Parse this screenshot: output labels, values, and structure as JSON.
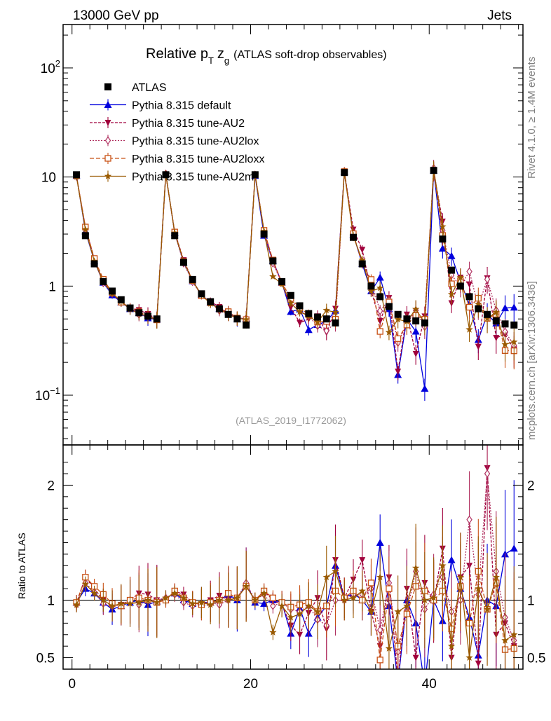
{
  "header": {
    "energy_label": "13000 GeV pp",
    "process_label": "Jets"
  },
  "side_labels": {
    "rivet": "Rivet 4.1.0, ≥ 1.4M events",
    "mcplots": "mcplots.cern.ch [arXiv:1306.3436]"
  },
  "chart_data": {
    "type": "line",
    "title": "Relative p_T z_g (ATLAS soft-drop observables)",
    "title_parts": {
      "main": "Relative p",
      "sub_t": "T",
      "z": "z",
      "sub_g": "g",
      "rest": "(ATLAS soft-drop observables)"
    },
    "analysis_id": "(ATLAS_2019_I1772062)",
    "xlabel": "",
    "ylabel_ratio": "Ratio to ATLAS",
    "xlim": [
      -1,
      50.5
    ],
    "ylim_main": [
      0.035,
      250
    ],
    "ylim_ratio": [
      0.4,
      2.35
    ],
    "yscale_main": "log",
    "x_ticks": [
      0,
      20,
      40
    ],
    "x_tick_labels": [
      "0",
      "20",
      "40"
    ],
    "y_ticks_main": [
      {
        "value": 100,
        "base": "10",
        "exp": "2"
      },
      {
        "value": 10,
        "base": "10",
        "exp": ""
      },
      {
        "value": 1,
        "base": "1",
        "exp": ""
      },
      {
        "value": 0.1,
        "base": "10",
        "exp": "−1"
      }
    ],
    "y_ticks_ratio": [
      {
        "value": 2,
        "label": "2"
      },
      {
        "value": 1,
        "label": "1"
      },
      {
        "value": 0.5,
        "label": "0.5"
      }
    ],
    "x": [
      0.5,
      1.5,
      2.5,
      3.5,
      4.5,
      5.5,
      6.5,
      7.5,
      8.5,
      9.5,
      10.5,
      11.5,
      12.5,
      13.5,
      14.5,
      15.5,
      16.5,
      17.5,
      18.5,
      19.5,
      20.5,
      21.5,
      22.5,
      23.5,
      24.5,
      25.5,
      26.5,
      27.5,
      28.5,
      29.5,
      30.5,
      31.5,
      32.5,
      33.5,
      34.5,
      35.5,
      36.5,
      37.5,
      38.5,
      39.5,
      40.5,
      41.5,
      42.5,
      43.5,
      44.5,
      45.5,
      46.5,
      47.5,
      48.5,
      49.5
    ],
    "series": [
      {
        "name": "ATLAS",
        "is_data": true,
        "color": "#000000",
        "marker": "square",
        "dash": "",
        "values": [
          10.5,
          2.9,
          1.6,
          1.1,
          0.9,
          0.75,
          0.63,
          0.57,
          0.53,
          0.5,
          10.5,
          2.9,
          1.65,
          1.15,
          0.85,
          0.72,
          0.62,
          0.55,
          0.5,
          0.44,
          10.5,
          3.0,
          1.7,
          1.1,
          0.82,
          0.66,
          0.56,
          0.52,
          0.5,
          0.46,
          11.0,
          2.8,
          1.6,
          1.0,
          0.8,
          0.65,
          0.55,
          0.5,
          0.48,
          0.46,
          11.5,
          2.7,
          1.4,
          1.0,
          0.8,
          0.62,
          0.55,
          0.48,
          0.45,
          0.44
        ]
      },
      {
        "name": "Pythia 8.315 default",
        "color": "#0000dd",
        "marker": "triangle-up",
        "dash": "",
        "ratio": [
          0.98,
          1.1,
          1.06,
          0.98,
          0.92,
          0.95,
          0.98,
          1.0,
          0.96,
          0.99,
          1.02,
          1.06,
          1.0,
          0.97,
          0.98,
          0.98,
          1.0,
          1.05,
          1.0,
          1.15,
          0.98,
          0.97,
          1.0,
          0.98,
          0.71,
          0.93,
          0.71,
          0.85,
          0.95,
          1.3,
          1.02,
          1.06,
          1.0,
          0.9,
          1.5,
          0.95,
          0.28,
          1.0,
          0.8,
          0.25,
          1.0,
          0.82,
          1.35,
          1.1,
          0.85,
          0.52,
          1.0,
          0.95,
          1.4,
          1.45
        ]
      },
      {
        "name": "Pythia 8.315 tune-AU2",
        "color": "#a0003c",
        "marker": "triangle-down",
        "dash": "4,2",
        "ratio": [
          0.97,
          1.2,
          1.1,
          1.0,
          0.95,
          0.96,
          1.0,
          1.06,
          1.05,
          1.0,
          1.0,
          1.08,
          1.05,
          0.98,
          0.96,
          1.0,
          1.04,
          1.0,
          1.02,
          1.12,
          1.0,
          1.08,
          1.0,
          0.96,
          0.78,
          0.7,
          0.89,
          1.02,
          0.75,
          1.35,
          1.02,
          1.18,
          1.35,
          0.9,
          0.6,
          1.2,
          0.3,
          1.1,
          0.5,
          1.15,
          0.98,
          1.45,
          0.5,
          1.2,
          1.3,
          0.45,
          2.15,
          0.7,
          0.8,
          0.6
        ]
      },
      {
        "name": "Pythia 8.315 tune-AU2lox",
        "color": "#b03060",
        "marker": "diamond",
        "dash": "2,2",
        "ratio": [
          0.96,
          1.15,
          1.07,
          0.97,
          0.95,
          0.96,
          1.0,
          0.96,
          1.0,
          1.0,
          1.02,
          1.05,
          0.98,
          0.95,
          0.97,
          0.98,
          0.96,
          1.0,
          1.02,
          1.15,
          1.0,
          1.05,
          0.95,
          0.98,
          0.92,
          0.9,
          0.95,
          0.83,
          0.78,
          1.0,
          1.0,
          1.05,
          1.05,
          1.1,
          0.74,
          1.15,
          0.55,
          0.9,
          1.25,
          0.92,
          1.05,
          1.2,
          0.9,
          1.0,
          1.7,
          1.05,
          2.1,
          1.25,
          0.85,
          0.65
        ]
      },
      {
        "name": "Pythia 8.315 tune-AU2loxx",
        "color": "#c85014",
        "marker": "square-open",
        "dash": "6,3",
        "ratio": [
          0.98,
          1.2,
          1.12,
          1.05,
          0.97,
          0.95,
          1.0,
          1.02,
          1.0,
          0.98,
          1.0,
          1.08,
          1.02,
          0.98,
          0.96,
          0.98,
          1.0,
          1.06,
          1.02,
          1.12,
          1.0,
          1.08,
          1.02,
          0.98,
          0.94,
          0.96,
          0.98,
          0.9,
          0.95,
          1.08,
          1.02,
          1.08,
          1.0,
          1.15,
          0.48,
          1.1,
          0.6,
          0.88,
          1.12,
          1.08,
          1.0,
          1.08,
          0.75,
          1.12,
          0.8,
          1.25,
          0.92,
          1.15,
          0.57,
          0.58
        ]
      },
      {
        "name": "Pythia 8.315 tune-AU2m",
        "color": "#9a5a00",
        "marker": "star",
        "dash": "",
        "ratio": [
          0.96,
          1.14,
          1.06,
          1.0,
          0.95,
          0.97,
          0.97,
          0.98,
          1.0,
          0.98,
          1.02,
          1.06,
          1.02,
          0.97,
          0.98,
          0.96,
          1.0,
          1.0,
          1.02,
          1.12,
          1.0,
          1.06,
          0.72,
          0.95,
          0.85,
          0.88,
          0.95,
          0.9,
          1.2,
          1.25,
          1.0,
          1.02,
          1.08,
          0.9,
          1.2,
          0.58,
          0.9,
          0.95,
          1.28,
          1.0,
          1.02,
          1.3,
          0.6,
          1.2,
          0.5,
          1.1,
          0.92,
          1.2,
          0.65,
          0.7
        ]
      }
    ]
  }
}
